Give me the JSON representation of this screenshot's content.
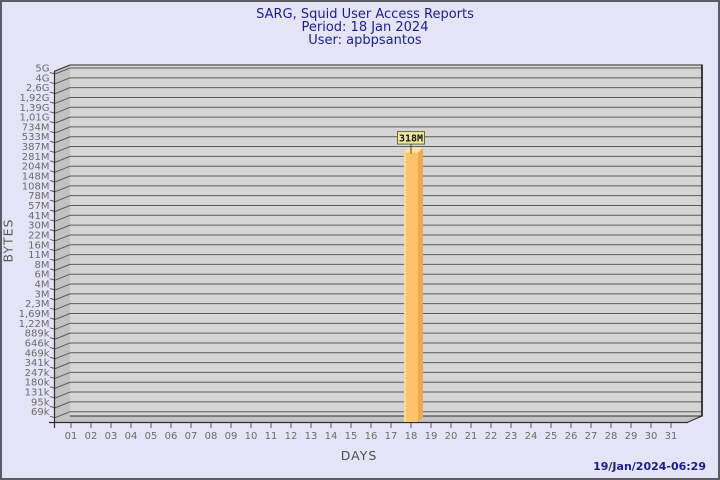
{
  "header": {
    "title": "SARG, Squid User Access Reports",
    "period": "Period: 18 Jan 2024",
    "user": "User: apbpsantos"
  },
  "footer": {
    "generated_timestamp": "19/Jan/2024-06:29"
  },
  "chart_data": {
    "type": "bar",
    "title": "SARG, Squid User Access Reports",
    "subtitle": [
      "Period: 18 Jan 2024",
      "User: apbpsantos"
    ],
    "xlabel": "DAYS",
    "ylabel": "BYTES",
    "legend": "none",
    "grid": "horizontal",
    "style": "3d-bar",
    "y_axis": {
      "scale": "log-like",
      "tick_labels_top_to_bottom": [
        "5G",
        "4G",
        "2,6G",
        "1,92G",
        "1,39G",
        "1,01G",
        "734M",
        "533M",
        "387M",
        "281M",
        "204M",
        "148M",
        "108M",
        "78M",
        "57M",
        "41M",
        "30M",
        "22M",
        "16M",
        "11M",
        "8M",
        "6M",
        "4M",
        "3M",
        "2,3M",
        "1,69M",
        "1,22M",
        "889k",
        "646k",
        "469k",
        "341k",
        "247k",
        "180k",
        "131k",
        "95k",
        "69k"
      ]
    },
    "categories": [
      "01",
      "02",
      "03",
      "04",
      "05",
      "06",
      "07",
      "08",
      "09",
      "10",
      "11",
      "12",
      "13",
      "14",
      "15",
      "16",
      "17",
      "18",
      "19",
      "20",
      "21",
      "22",
      "23",
      "24",
      "25",
      "26",
      "27",
      "28",
      "29",
      "30",
      "31"
    ],
    "values_bytes": [
      null,
      null,
      null,
      null,
      null,
      null,
      null,
      null,
      null,
      null,
      null,
      null,
      null,
      null,
      null,
      null,
      null,
      318000000,
      null,
      null,
      null,
      null,
      null,
      null,
      null,
      null,
      null,
      null,
      null,
      null,
      null
    ],
    "points": [
      {
        "x": "18",
        "label": "318M",
        "value_bytes": 318000000
      }
    ]
  },
  "colors": {
    "background": "#E4E4F6",
    "frame_border": "#5C5C66",
    "title_text": "#1C1C8F",
    "timestamp_text": "#1C1C8F",
    "axis_title_text": "#5A5A5A",
    "tick_label_text": "#6B6B6B",
    "plot_back_wall": "#D5D5D5",
    "plot_side_wall": "#C2C2C2",
    "gridline": "#5C5C5C",
    "plot_edge": "#2E2E2E",
    "bar_front": "#FBC36B",
    "bar_front_highlight": "#FDD892",
    "bar_top": "#FFE2A1",
    "bar_side": "#EFA751",
    "bar_label_bg": "#EFE8A2",
    "bar_label_border": "#6B6B3A",
    "bar_label_text": "#15150F",
    "connector_line": "#44442A"
  }
}
